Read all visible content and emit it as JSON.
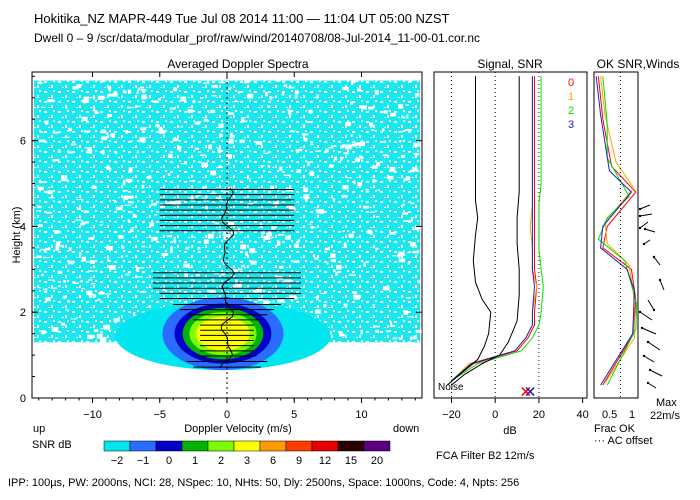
{
  "header": {
    "title": "Hokitika_NZ   MAPR-449   Tue Jul 08 2014 11:00 — 11:04 UT 05:00 NZST",
    "dwell": "Dwell   0 –   9    /scr/data/modular_prof/raw/wind/20140708/08-Jul-2014_11-00-01.cor.nc"
  },
  "footer": "IPP: 100µs,  PW: 2000ns,  NCI:  28,  NSpec: 10,  NHts: 50,  Dly: 2500ns,  Space: 1000ns,  Code: 4,  Npts: 256",
  "chart_data": [
    {
      "type": "heatmap",
      "title": "Averaged Doppler Spectra",
      "xlabel": "Doppler Velocity (m/s)",
      "ylabel": "Height (km)",
      "x_ticks": [
        "−10",
        "−5",
        "0",
        "5",
        "10"
      ],
      "y_ticks": [
        "0",
        "2",
        "4",
        "6"
      ],
      "xlim": [
        -14.5,
        14.5
      ],
      "ylim": [
        0,
        7.6
      ],
      "direction_labels": {
        "left": "up",
        "right": "down"
      },
      "colorbar": {
        "label": "SNR dB",
        "ticks": [
          "−2",
          "−1",
          "0",
          "1",
          "2",
          "3",
          "6",
          "9",
          "12",
          "15",
          "20"
        ],
        "colors": [
          "#00e5ee",
          "#2a6cff",
          "#0000c8",
          "#00b400",
          "#7cfc00",
          "#ffff00",
          "#ff9a00",
          "#ff3c00",
          "#e60000",
          "#2a0000",
          "#5a0080"
        ]
      },
      "strong_return": {
        "height_range": [
          0.7,
          2.3
        ],
        "velocity_range": [
          -4.5,
          4
        ]
      },
      "spectral_width_bars": [
        {
          "height": 0.72,
          "left": -2.5,
          "right": 2.5
        },
        {
          "height": 0.85,
          "left": -3,
          "right": 3
        },
        {
          "height": 0.98,
          "left": -2.2,
          "right": 2.2
        },
        {
          "height": 1.1,
          "left": -2,
          "right": 2
        },
        {
          "height": 1.22,
          "left": -2,
          "right": 2
        },
        {
          "height": 1.34,
          "left": -2,
          "right": 2
        },
        {
          "height": 1.46,
          "left": -2,
          "right": 2
        },
        {
          "height": 1.58,
          "left": -2,
          "right": 2
        },
        {
          "height": 1.7,
          "left": -2,
          "right": 2
        },
        {
          "height": 1.82,
          "left": -2.5,
          "right": 2.5
        },
        {
          "height": 1.94,
          "left": -3,
          "right": 3
        },
        {
          "height": 2.06,
          "left": -3.5,
          "right": 3.5
        },
        {
          "height": 2.18,
          "left": -4,
          "right": 4
        },
        {
          "height": 2.32,
          "left": -5,
          "right": 5
        },
        {
          "height": 2.44,
          "left": -5,
          "right": 5.5
        },
        {
          "height": 2.56,
          "left": -5.5,
          "right": 5.5
        },
        {
          "height": 2.68,
          "left": -5.5,
          "right": 5.5
        },
        {
          "height": 2.8,
          "left": -5.5,
          "right": 5.5
        },
        {
          "height": 2.92,
          "left": -5.5,
          "right": 5.5
        },
        {
          "height": 3.9,
          "left": -5,
          "right": 5
        },
        {
          "height": 4.02,
          "left": -5,
          "right": 5
        },
        {
          "height": 4.14,
          "left": -5,
          "right": 5
        },
        {
          "height": 4.26,
          "left": -5,
          "right": 5
        },
        {
          "height": 4.38,
          "left": -5,
          "right": 5
        },
        {
          "height": 4.5,
          "left": -5,
          "right": 5
        },
        {
          "height": 4.62,
          "left": -5,
          "right": 5
        },
        {
          "height": 4.74,
          "left": -5,
          "right": 5
        },
        {
          "height": 4.86,
          "left": -5,
          "right": 5
        }
      ]
    },
    {
      "type": "line",
      "title": "Signal, SNR",
      "xlabel": "dB",
      "x_ticks": [
        "−20",
        "0",
        "20",
        "40"
      ],
      "xlim": [
        -28,
        42
      ],
      "ylim": [
        0,
        7.6
      ],
      "annotation": "Noise",
      "series": [
        {
          "name": "0",
          "color": "#ff0000",
          "x": [
            -20,
            -10,
            10,
            15,
            18,
            18,
            19,
            18,
            18,
            18,
            18,
            18,
            18,
            18
          ],
          "y": [
            0.4,
            0.8,
            1.1,
            1.4,
            1.7,
            2.0,
            2.6,
            3.0,
            3.5,
            4.0,
            4.5,
            5.0,
            6.0,
            7.5
          ]
        },
        {
          "name": "1",
          "color": "#ffa500",
          "x": [
            -20,
            -12,
            9,
            14,
            17,
            17,
            19,
            17,
            17,
            16,
            17,
            17,
            17,
            17
          ],
          "y": [
            0.4,
            0.8,
            1.1,
            1.4,
            1.7,
            2.0,
            2.6,
            3.0,
            3.5,
            4.0,
            4.5,
            5.0,
            6.0,
            7.5
          ]
        },
        {
          "name": "2",
          "color": "#00e000",
          "x": [
            -20,
            -8,
            12,
            17,
            20,
            21,
            22,
            21,
            20,
            20,
            20,
            21,
            21,
            21
          ],
          "y": [
            0.4,
            0.8,
            1.1,
            1.4,
            1.7,
            2.0,
            2.6,
            3.0,
            3.5,
            4.0,
            4.5,
            5.0,
            6.0,
            7.5
          ]
        },
        {
          "name": "3",
          "color": "#2020c0",
          "x": [
            -20,
            -11,
            9,
            14,
            17,
            17,
            18,
            17,
            17,
            17,
            17,
            17,
            17,
            17
          ],
          "y": [
            0.4,
            0.8,
            1.1,
            1.4,
            1.7,
            2.0,
            2.6,
            3.0,
            3.5,
            4.0,
            4.5,
            5.0,
            6.0,
            7.5
          ]
        },
        {
          "name": "Signal",
          "color": "#000000",
          "x": [
            -22,
            -15,
            -8,
            -5,
            -3,
            -2,
            -6,
            -9,
            -10,
            -9,
            -8,
            -9,
            -9,
            -9,
            -9
          ],
          "y": [
            0.3,
            0.6,
            0.9,
            1.2,
            1.5,
            2.0,
            2.3,
            2.7,
            3.2,
            3.8,
            4.2,
            4.6,
            5.5,
            6.5,
            7.5
          ]
        },
        {
          "name": "Signal 2",
          "color": "#000000",
          "x": [
            -20,
            -14,
            -6,
            2,
            6,
            10,
            11,
            11,
            10,
            10,
            11,
            11,
            11,
            11
          ],
          "y": [
            0.3,
            0.55,
            0.8,
            1.0,
            1.3,
            1.8,
            2.4,
            3.0,
            3.6,
            4.2,
            4.8,
            5.5,
            6.5,
            7.5
          ]
        }
      ],
      "dotted_verticals": [
        -20,
        0,
        20
      ],
      "markers": [
        {
          "x": 14,
          "y": 0.15,
          "color": "#ff0000"
        },
        {
          "x": 16,
          "y": 0.15,
          "color": "#2020c0"
        }
      ]
    },
    {
      "type": "line",
      "title": "OK SNR,Winds",
      "legend": [
        "0",
        "1",
        "2",
        "3"
      ],
      "legend_colors": [
        "#ff0000",
        "#ffa500",
        "#00e000",
        "#2020c0"
      ],
      "x_ticks": [
        "0.5",
        "1"
      ],
      "xlabel_lines": [
        "Frac OK",
        "··· AC offset"
      ],
      "speed_label": [
        "Max",
        "22m/s"
      ],
      "filter_label": "FCA Filter B2 12m/s"
    }
  ]
}
